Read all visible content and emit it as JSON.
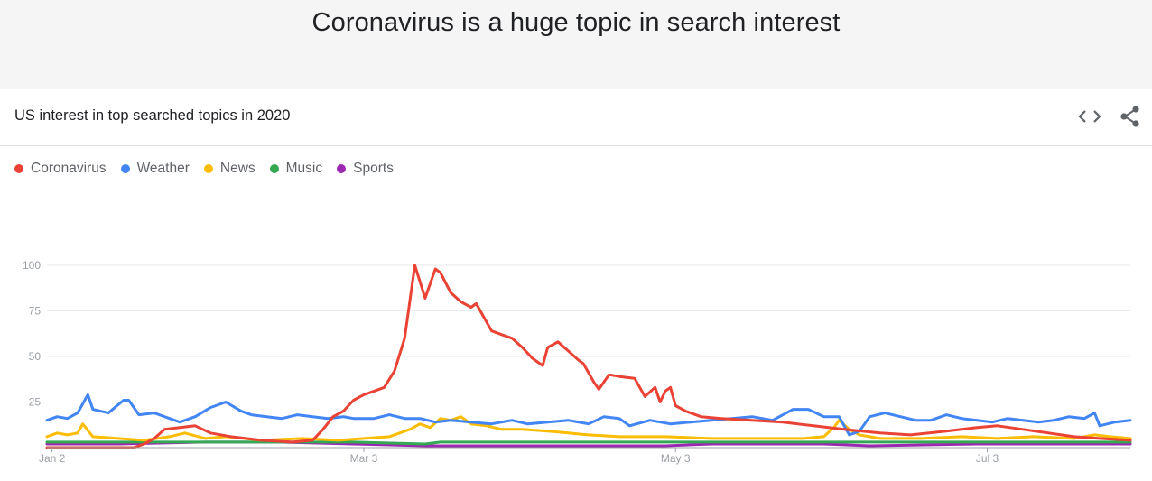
{
  "page": {
    "title": "Coronavirus is a huge topic in search interest"
  },
  "card": {
    "title": "US interest in top searched topics in 2020"
  },
  "icons": {
    "embed": "code-brackets-icon",
    "share": "share-icon"
  },
  "chart_data": {
    "type": "line",
    "title": "US interest in top searched topics in 2020",
    "xlabel": "",
    "ylabel": "",
    "x_range": [
      "2020-01-01",
      "2020-07-31"
    ],
    "ylim": [
      0,
      100
    ],
    "y_ticks": [
      25,
      50,
      75,
      100
    ],
    "x_ticks": [
      {
        "date": "2020-01-02",
        "label": "Jan 2"
      },
      {
        "date": "2020-03-03",
        "label": "Mar 3"
      },
      {
        "date": "2020-05-03",
        "label": "May 3"
      },
      {
        "date": "2020-07-03",
        "label": "Jul 3"
      }
    ],
    "grid": true,
    "legend_position": "top-left",
    "series": [
      {
        "name": "Coronavirus",
        "color": "#ea4335",
        "points": [
          [
            "2020-01-01",
            0
          ],
          [
            "2020-01-18",
            0
          ],
          [
            "2020-01-20",
            2
          ],
          [
            "2020-01-22",
            5
          ],
          [
            "2020-01-24",
            10
          ],
          [
            "2020-01-27",
            11
          ],
          [
            "2020-01-30",
            12
          ],
          [
            "2020-02-02",
            8
          ],
          [
            "2020-02-06",
            6
          ],
          [
            "2020-02-12",
            4
          ],
          [
            "2020-02-18",
            3
          ],
          [
            "2020-02-22",
            4
          ],
          [
            "2020-02-24",
            10
          ],
          [
            "2020-02-26",
            17
          ],
          [
            "2020-02-28",
            20
          ],
          [
            "2020-03-01",
            26
          ],
          [
            "2020-03-03",
            29
          ],
          [
            "2020-03-05",
            31
          ],
          [
            "2020-03-07",
            33
          ],
          [
            "2020-03-09",
            42
          ],
          [
            "2020-03-11",
            60
          ],
          [
            "2020-03-13",
            100
          ],
          [
            "2020-03-15",
            82
          ],
          [
            "2020-03-17",
            98
          ],
          [
            "2020-03-18",
            96
          ],
          [
            "2020-03-20",
            85
          ],
          [
            "2020-03-22",
            80
          ],
          [
            "2020-03-24",
            77
          ],
          [
            "2020-03-25",
            79
          ],
          [
            "2020-03-26",
            74
          ],
          [
            "2020-03-28",
            64
          ],
          [
            "2020-03-30",
            62
          ],
          [
            "2020-04-01",
            60
          ],
          [
            "2020-04-03",
            55
          ],
          [
            "2020-04-05",
            49
          ],
          [
            "2020-04-07",
            45
          ],
          [
            "2020-04-08",
            55
          ],
          [
            "2020-04-10",
            58
          ],
          [
            "2020-04-12",
            53
          ],
          [
            "2020-04-14",
            48
          ],
          [
            "2020-04-15",
            46
          ],
          [
            "2020-04-17",
            36
          ],
          [
            "2020-04-18",
            32
          ],
          [
            "2020-04-20",
            40
          ],
          [
            "2020-04-22",
            39
          ],
          [
            "2020-04-25",
            38
          ],
          [
            "2020-04-27",
            28
          ],
          [
            "2020-04-29",
            33
          ],
          [
            "2020-04-30",
            25
          ],
          [
            "2020-05-01",
            31
          ],
          [
            "2020-05-02",
            33
          ],
          [
            "2020-05-03",
            23
          ],
          [
            "2020-05-05",
            20
          ],
          [
            "2020-05-08",
            17
          ],
          [
            "2020-05-12",
            16
          ],
          [
            "2020-05-18",
            15
          ],
          [
            "2020-05-24",
            14
          ],
          [
            "2020-05-30",
            12
          ],
          [
            "2020-06-05",
            10
          ],
          [
            "2020-06-12",
            8
          ],
          [
            "2020-06-18",
            7
          ],
          [
            "2020-06-25",
            9
          ],
          [
            "2020-07-01",
            11
          ],
          [
            "2020-07-05",
            12
          ],
          [
            "2020-07-10",
            10
          ],
          [
            "2020-07-15",
            8
          ],
          [
            "2020-07-20",
            6
          ],
          [
            "2020-07-25",
            5
          ],
          [
            "2020-07-31",
            4
          ]
        ]
      },
      {
        "name": "Weather",
        "color": "#4285f4",
        "points": [
          [
            "2020-01-01",
            15
          ],
          [
            "2020-01-03",
            17
          ],
          [
            "2020-01-05",
            16
          ],
          [
            "2020-01-07",
            19
          ],
          [
            "2020-01-09",
            29
          ],
          [
            "2020-01-10",
            21
          ],
          [
            "2020-01-13",
            19
          ],
          [
            "2020-01-16",
            26
          ],
          [
            "2020-01-17",
            26
          ],
          [
            "2020-01-19",
            18
          ],
          [
            "2020-01-22",
            19
          ],
          [
            "2020-01-25",
            16
          ],
          [
            "2020-01-27",
            14
          ],
          [
            "2020-01-30",
            17
          ],
          [
            "2020-02-02",
            22
          ],
          [
            "2020-02-05",
            25
          ],
          [
            "2020-02-08",
            20
          ],
          [
            "2020-02-10",
            18
          ],
          [
            "2020-02-13",
            17
          ],
          [
            "2020-02-16",
            16
          ],
          [
            "2020-02-19",
            18
          ],
          [
            "2020-02-22",
            17
          ],
          [
            "2020-02-25",
            16
          ],
          [
            "2020-02-28",
            17
          ],
          [
            "2020-03-01",
            16
          ],
          [
            "2020-03-05",
            16
          ],
          [
            "2020-03-08",
            18
          ],
          [
            "2020-03-11",
            16
          ],
          [
            "2020-03-14",
            16
          ],
          [
            "2020-03-17",
            14
          ],
          [
            "2020-03-20",
            15
          ],
          [
            "2020-03-24",
            14
          ],
          [
            "2020-03-28",
            13
          ],
          [
            "2020-04-01",
            15
          ],
          [
            "2020-04-04",
            13
          ],
          [
            "2020-04-08",
            14
          ],
          [
            "2020-04-12",
            15
          ],
          [
            "2020-04-16",
            13
          ],
          [
            "2020-04-19",
            17
          ],
          [
            "2020-04-22",
            16
          ],
          [
            "2020-04-24",
            12
          ],
          [
            "2020-04-28",
            15
          ],
          [
            "2020-05-02",
            13
          ],
          [
            "2020-05-06",
            14
          ],
          [
            "2020-05-10",
            15
          ],
          [
            "2020-05-14",
            16
          ],
          [
            "2020-05-18",
            17
          ],
          [
            "2020-05-22",
            15
          ],
          [
            "2020-05-26",
            21
          ],
          [
            "2020-05-29",
            21
          ],
          [
            "2020-06-01",
            17
          ],
          [
            "2020-06-04",
            17
          ],
          [
            "2020-06-06",
            7
          ],
          [
            "2020-06-08",
            9
          ],
          [
            "2020-06-10",
            17
          ],
          [
            "2020-06-13",
            19
          ],
          [
            "2020-06-16",
            17
          ],
          [
            "2020-06-19",
            15
          ],
          [
            "2020-06-22",
            15
          ],
          [
            "2020-06-25",
            18
          ],
          [
            "2020-06-28",
            16
          ],
          [
            "2020-07-01",
            15
          ],
          [
            "2020-07-04",
            14
          ],
          [
            "2020-07-07",
            16
          ],
          [
            "2020-07-10",
            15
          ],
          [
            "2020-07-13",
            14
          ],
          [
            "2020-07-16",
            15
          ],
          [
            "2020-07-19",
            17
          ],
          [
            "2020-07-22",
            16
          ],
          [
            "2020-07-24",
            19
          ],
          [
            "2020-07-25",
            12
          ],
          [
            "2020-07-28",
            14
          ],
          [
            "2020-07-31",
            15
          ]
        ]
      },
      {
        "name": "News",
        "color": "#fbbc04",
        "points": [
          [
            "2020-01-01",
            6
          ],
          [
            "2020-01-03",
            8
          ],
          [
            "2020-01-05",
            7
          ],
          [
            "2020-01-07",
            8
          ],
          [
            "2020-01-08",
            13
          ],
          [
            "2020-01-10",
            6
          ],
          [
            "2020-01-15",
            5
          ],
          [
            "2020-01-20",
            4
          ],
          [
            "2020-01-25",
            6
          ],
          [
            "2020-01-28",
            8
          ],
          [
            "2020-02-01",
            5
          ],
          [
            "2020-02-05",
            6
          ],
          [
            "2020-02-12",
            4
          ],
          [
            "2020-02-20",
            5
          ],
          [
            "2020-02-27",
            4
          ],
          [
            "2020-03-03",
            5
          ],
          [
            "2020-03-08",
            6
          ],
          [
            "2020-03-12",
            10
          ],
          [
            "2020-03-14",
            13
          ],
          [
            "2020-03-16",
            11
          ],
          [
            "2020-03-18",
            16
          ],
          [
            "2020-03-20",
            15
          ],
          [
            "2020-03-22",
            17
          ],
          [
            "2020-03-24",
            13
          ],
          [
            "2020-03-27",
            12
          ],
          [
            "2020-03-30",
            10
          ],
          [
            "2020-04-03",
            10
          ],
          [
            "2020-04-08",
            9
          ],
          [
            "2020-04-12",
            8
          ],
          [
            "2020-04-16",
            7
          ],
          [
            "2020-04-22",
            6
          ],
          [
            "2020-05-01",
            6
          ],
          [
            "2020-05-10",
            5
          ],
          [
            "2020-05-20",
            5
          ],
          [
            "2020-05-28",
            5
          ],
          [
            "2020-06-01",
            6
          ],
          [
            "2020-06-03",
            11
          ],
          [
            "2020-06-04",
            15
          ],
          [
            "2020-06-06",
            10
          ],
          [
            "2020-06-08",
            7
          ],
          [
            "2020-06-12",
            5
          ],
          [
            "2020-06-20",
            5
          ],
          [
            "2020-06-28",
            6
          ],
          [
            "2020-07-05",
            5
          ],
          [
            "2020-07-12",
            6
          ],
          [
            "2020-07-20",
            5
          ],
          [
            "2020-07-24",
            7
          ],
          [
            "2020-07-27",
            6
          ],
          [
            "2020-07-31",
            5
          ]
        ]
      },
      {
        "name": "Music",
        "color": "#34a853",
        "points": [
          [
            "2020-01-01",
            3
          ],
          [
            "2020-02-01",
            3
          ],
          [
            "2020-03-01",
            3
          ],
          [
            "2020-03-15",
            2
          ],
          [
            "2020-03-18",
            3
          ],
          [
            "2020-04-01",
            3
          ],
          [
            "2020-05-01",
            3
          ],
          [
            "2020-06-01",
            3
          ],
          [
            "2020-07-01",
            3
          ],
          [
            "2020-07-31",
            3
          ]
        ]
      },
      {
        "name": "Sports",
        "color": "#9c27b0",
        "points": [
          [
            "2020-01-01",
            2
          ],
          [
            "2020-01-15",
            2
          ],
          [
            "2020-02-01",
            3
          ],
          [
            "2020-02-15",
            3
          ],
          [
            "2020-03-01",
            2
          ],
          [
            "2020-03-15",
            1
          ],
          [
            "2020-04-01",
            1
          ],
          [
            "2020-05-01",
            1
          ],
          [
            "2020-05-10",
            2
          ],
          [
            "2020-06-01",
            2
          ],
          [
            "2020-06-10",
            1
          ],
          [
            "2020-07-01",
            2
          ],
          [
            "2020-07-31",
            2
          ]
        ]
      }
    ]
  }
}
